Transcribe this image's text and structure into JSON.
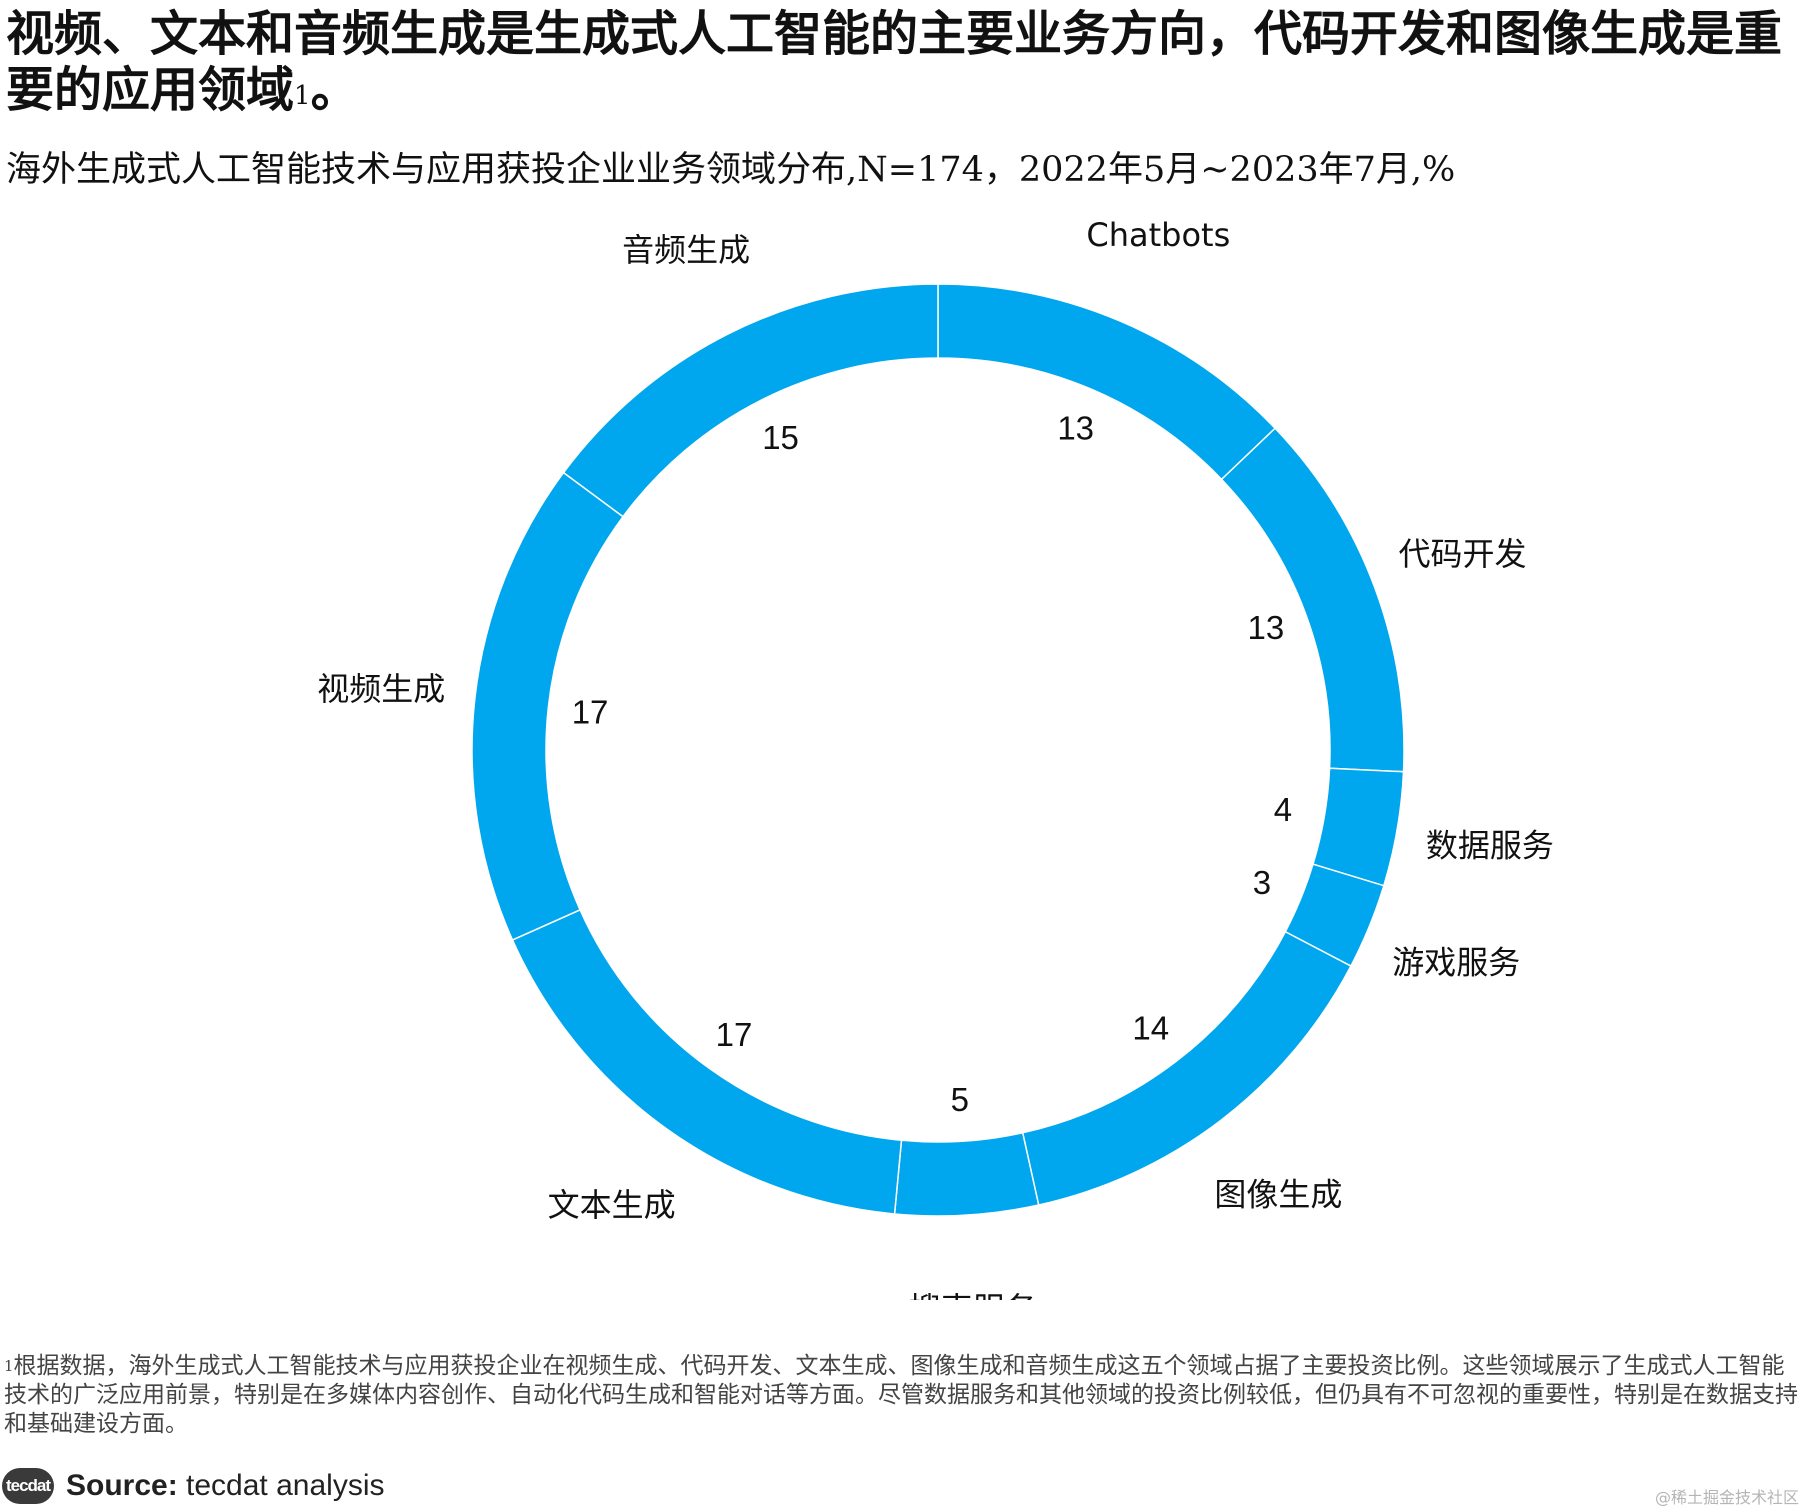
{
  "title": "视频、文本和音频生成是生成式人工智能的主要业务方向，代码开发和图像生成是重要的应用领域",
  "title_sup": "1",
  "title_end": "。",
  "subtitle": "海外生成式人工智能技术与应用获投企业业务领域分布,N=174，2022年5月~2023年7月,%",
  "chart_data": {
    "type": "pie",
    "variant": "donut",
    "color": "#00A6EE",
    "separator_color": "#ffffff",
    "start": "12 o'clock",
    "direction": "clockwise",
    "categories": [
      "Chatbots",
      "代码开发",
      "数据服务",
      "游戏服务",
      "图像生成",
      "搜索服务",
      "文本生成",
      "视频生成",
      "音频生成"
    ],
    "values": [
      13,
      13,
      4,
      3,
      14,
      5,
      17,
      17,
      15
    ]
  },
  "footnote_sup": "1",
  "footnote": "根据数据，海外生成式人工智能技术与应用获投企业在视频生成、代码开发、文本生成、图像生成和音频生成这五个领域占据了主要投资比例。这些领域展示了生成式人工智能技术的广泛应用前景，特别是在多媒体内容创作、自动化代码生成和智能对话等方面。尽管数据服务和其他领域的投资比例较低，但仍具有不可忽视的重要性，特别是在数据支持和基础建设方面。",
  "source": {
    "logo_text": "tecdat",
    "label": "Source:",
    "text": " tecdat analysis"
  },
  "watermark": "@稀土掘金技术社区"
}
